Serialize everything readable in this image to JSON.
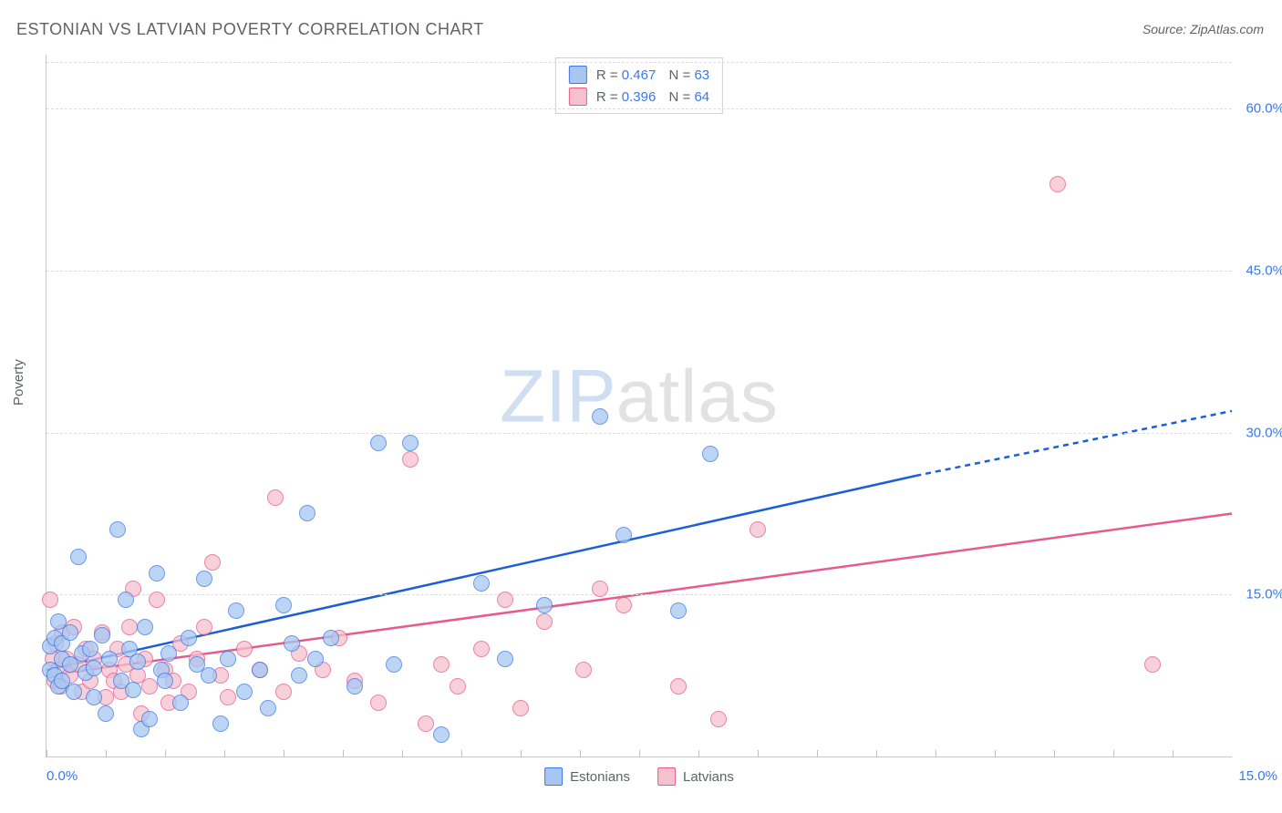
{
  "title": "ESTONIAN VS LATVIAN POVERTY CORRELATION CHART",
  "source_label": "Source: ZipAtlas.com",
  "watermark": {
    "part1": "ZIP",
    "part2": "atlas"
  },
  "ylabel": "Poverty",
  "xlim": [
    0.0,
    15.0
  ],
  "ylim": [
    0.0,
    65.0
  ],
  "xlim_labels": {
    "left": "0.0%",
    "right": "15.0%"
  },
  "y_gridlines": [
    15.0,
    30.0,
    45.0,
    60.0,
    64.3
  ],
  "y_tick_labels": [
    {
      "y": 15.0,
      "label": "15.0%"
    },
    {
      "y": 30.0,
      "label": "30.0%"
    },
    {
      "y": 45.0,
      "label": "45.0%"
    },
    {
      "y": 60.0,
      "label": "60.0%"
    }
  ],
  "x_ticks": [
    0.0,
    0.75,
    1.5,
    2.25,
    3.0,
    3.75,
    4.5,
    5.25,
    6.0,
    6.75,
    7.5,
    8.25,
    9.0,
    9.75,
    10.5,
    11.25,
    12.0,
    12.75,
    13.5,
    14.25
  ],
  "colors": {
    "blue_fill": "#a7c7f2",
    "blue_stroke": "#3b78e7",
    "pink_fill": "#f6c1ce",
    "pink_stroke": "#e75a8d",
    "blue_line": "#1a5fd6",
    "pink_line": "#e75a8d",
    "grid": "#dcdcdc",
    "axis": "#c9c9c9",
    "text": "#5f6368",
    "value": "#3b78e7"
  },
  "series": {
    "estonians": {
      "label": "Estonians",
      "R": "0.467",
      "N": "63",
      "marker_size": 16,
      "trend": {
        "x1": 0,
        "y1": 8.0,
        "x2_solid": 11.0,
        "y2_solid": 26.0,
        "x2_dash": 15.0,
        "y2_dash": 32.0
      },
      "points": [
        [
          0.05,
          10.2
        ],
        [
          0.05,
          8.0
        ],
        [
          0.1,
          7.5
        ],
        [
          0.1,
          11.0
        ],
        [
          0.15,
          6.5
        ],
        [
          0.15,
          12.5
        ],
        [
          0.2,
          9.0
        ],
        [
          0.2,
          7.0
        ],
        [
          0.2,
          10.5
        ],
        [
          0.3,
          8.5
        ],
        [
          0.3,
          11.5
        ],
        [
          0.35,
          6.0
        ],
        [
          0.4,
          18.5
        ],
        [
          0.45,
          9.5
        ],
        [
          0.5,
          7.8
        ],
        [
          0.55,
          10.0
        ],
        [
          0.6,
          5.5
        ],
        [
          0.6,
          8.2
        ],
        [
          0.7,
          11.2
        ],
        [
          0.75,
          4.0
        ],
        [
          0.8,
          9.0
        ],
        [
          0.9,
          21.0
        ],
        [
          0.95,
          7.0
        ],
        [
          1.0,
          14.5
        ],
        [
          1.05,
          10.0
        ],
        [
          1.1,
          6.2
        ],
        [
          1.15,
          8.8
        ],
        [
          1.2,
          2.5
        ],
        [
          1.25,
          12.0
        ],
        [
          1.3,
          3.5
        ],
        [
          1.4,
          17.0
        ],
        [
          1.45,
          8.0
        ],
        [
          1.5,
          7.0
        ],
        [
          1.55,
          9.5
        ],
        [
          1.7,
          5.0
        ],
        [
          1.8,
          11.0
        ],
        [
          1.9,
          8.5
        ],
        [
          2.0,
          16.5
        ],
        [
          2.05,
          7.5
        ],
        [
          2.2,
          3.0
        ],
        [
          2.3,
          9.0
        ],
        [
          2.4,
          13.5
        ],
        [
          2.5,
          6.0
        ],
        [
          2.7,
          8.0
        ],
        [
          2.8,
          4.5
        ],
        [
          3.0,
          14.0
        ],
        [
          3.1,
          10.5
        ],
        [
          3.2,
          7.5
        ],
        [
          3.3,
          22.5
        ],
        [
          3.4,
          9.0
        ],
        [
          3.6,
          11.0
        ],
        [
          3.9,
          6.5
        ],
        [
          4.2,
          29.0
        ],
        [
          4.4,
          8.5
        ],
        [
          4.6,
          29.0
        ],
        [
          5.0,
          2.0
        ],
        [
          5.5,
          16.0
        ],
        [
          5.8,
          9.0
        ],
        [
          6.3,
          14.0
        ],
        [
          7.0,
          31.5
        ],
        [
          7.3,
          20.5
        ],
        [
          8.0,
          13.5
        ],
        [
          8.4,
          28.0
        ]
      ]
    },
    "latvians": {
      "label": "Latvians",
      "R": "0.396",
      "N": "64",
      "marker_size": 16,
      "trend": {
        "x1": 0,
        "y1": 7.5,
        "x2_solid": 15.0,
        "y2_solid": 22.5
      },
      "points": [
        [
          0.05,
          14.5
        ],
        [
          0.08,
          9.0
        ],
        [
          0.1,
          7.0
        ],
        [
          0.12,
          10.5
        ],
        [
          0.15,
          8.0
        ],
        [
          0.18,
          6.5
        ],
        [
          0.2,
          11.5
        ],
        [
          0.25,
          9.0
        ],
        [
          0.3,
          7.5
        ],
        [
          0.35,
          12.0
        ],
        [
          0.4,
          8.5
        ],
        [
          0.45,
          6.0
        ],
        [
          0.5,
          10.0
        ],
        [
          0.55,
          7.0
        ],
        [
          0.6,
          9.0
        ],
        [
          0.7,
          11.5
        ],
        [
          0.75,
          5.5
        ],
        [
          0.8,
          8.0
        ],
        [
          0.85,
          7.0
        ],
        [
          0.9,
          10.0
        ],
        [
          0.95,
          6.0
        ],
        [
          1.0,
          8.5
        ],
        [
          1.05,
          12.0
        ],
        [
          1.1,
          15.5
        ],
        [
          1.15,
          7.5
        ],
        [
          1.2,
          4.0
        ],
        [
          1.25,
          9.0
        ],
        [
          1.3,
          6.5
        ],
        [
          1.4,
          14.5
        ],
        [
          1.5,
          8.0
        ],
        [
          1.55,
          5.0
        ],
        [
          1.6,
          7.0
        ],
        [
          1.7,
          10.5
        ],
        [
          1.8,
          6.0
        ],
        [
          1.9,
          9.0
        ],
        [
          2.0,
          12.0
        ],
        [
          2.1,
          18.0
        ],
        [
          2.2,
          7.5
        ],
        [
          2.3,
          5.5
        ],
        [
          2.5,
          10.0
        ],
        [
          2.7,
          8.0
        ],
        [
          2.9,
          24.0
        ],
        [
          3.0,
          6.0
        ],
        [
          3.2,
          9.5
        ],
        [
          3.5,
          8.0
        ],
        [
          3.7,
          11.0
        ],
        [
          3.9,
          7.0
        ],
        [
          4.2,
          5.0
        ],
        [
          4.6,
          27.5
        ],
        [
          4.8,
          3.0
        ],
        [
          5.0,
          8.5
        ],
        [
          5.2,
          6.5
        ],
        [
          5.5,
          10.0
        ],
        [
          5.8,
          14.5
        ],
        [
          6.0,
          4.5
        ],
        [
          6.3,
          12.5
        ],
        [
          6.8,
          8.0
        ],
        [
          7.0,
          15.5
        ],
        [
          7.3,
          14.0
        ],
        [
          8.0,
          6.5
        ],
        [
          8.5,
          3.5
        ],
        [
          9.0,
          21.0
        ],
        [
          12.8,
          53.0
        ],
        [
          14.0,
          8.5
        ]
      ]
    }
  },
  "bottom_legend": [
    {
      "label": "Estonians",
      "fill": "#a7c7f2",
      "stroke": "#3b78e7"
    },
    {
      "label": "Latvians",
      "fill": "#f6c1ce",
      "stroke": "#e75a8d"
    }
  ]
}
